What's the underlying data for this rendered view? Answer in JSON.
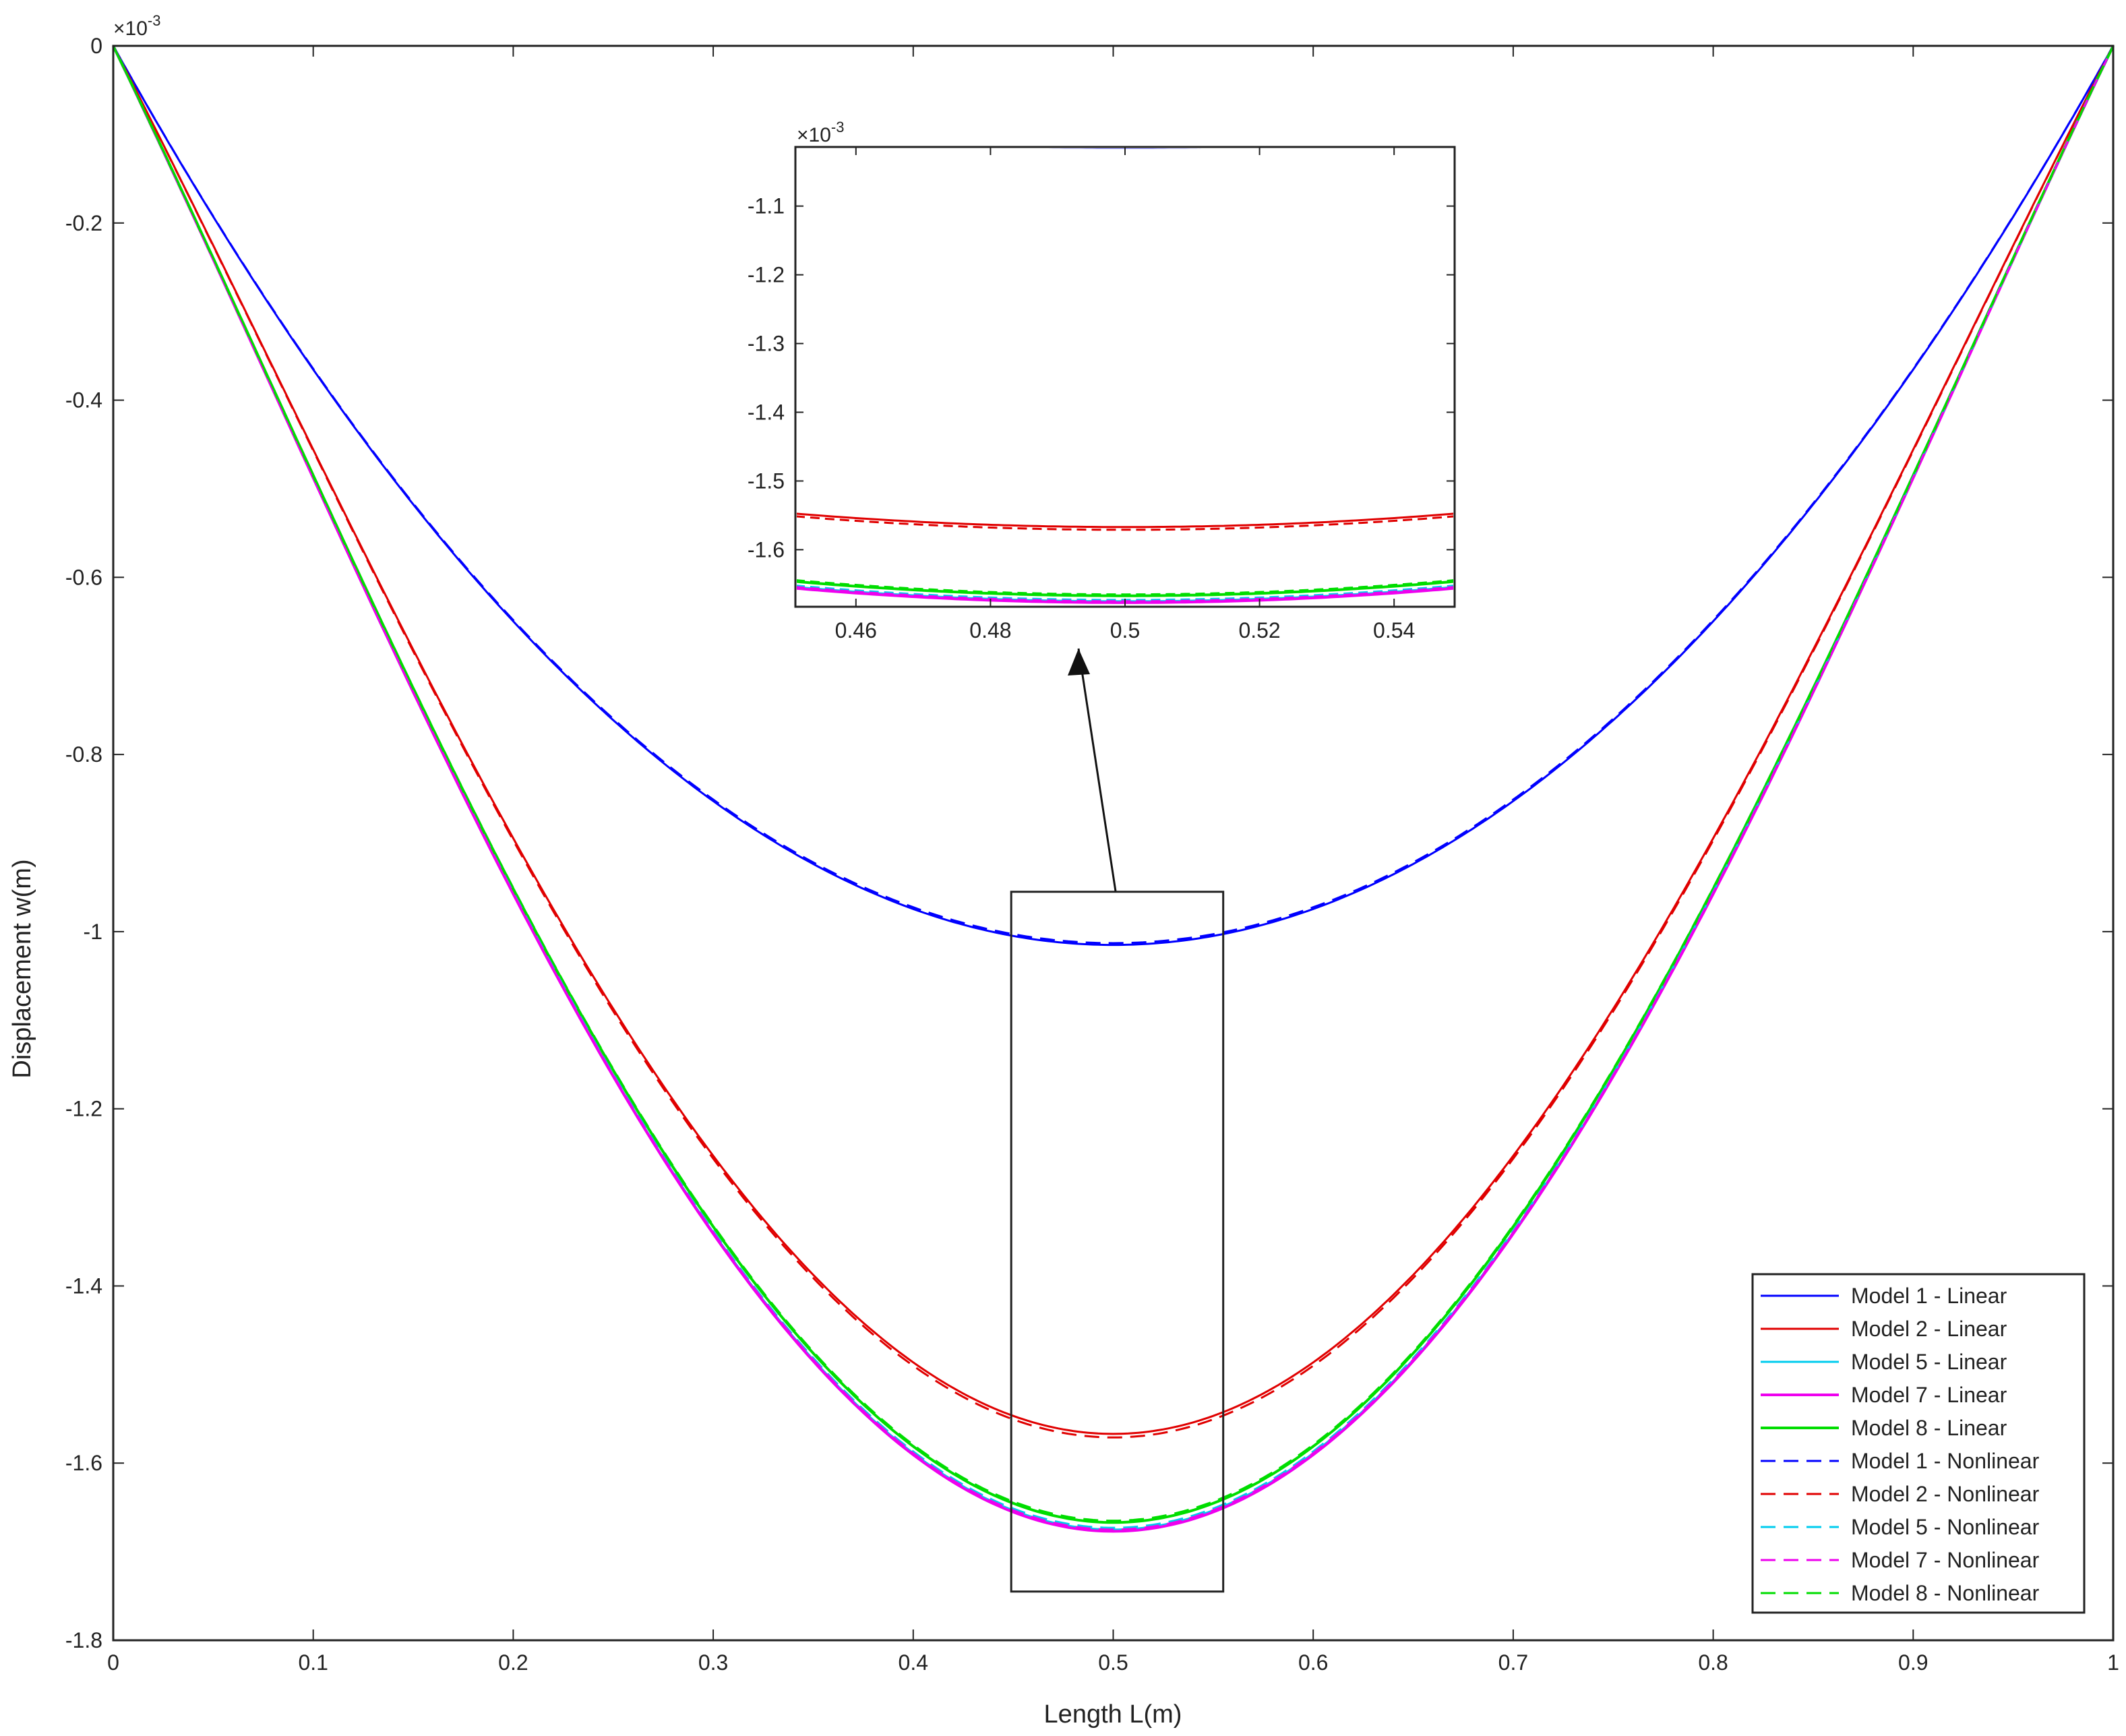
{
  "chart_data": [
    {
      "id": "main",
      "type": "line",
      "title": "",
      "xlabel": "Length L(m)",
      "ylabel": "Displacement w(m)",
      "xlim": [
        0,
        1
      ],
      "ylim": [
        -1.8,
        0
      ],
      "x_ticks": [
        0,
        0.1,
        0.2,
        0.3,
        0.4,
        0.5,
        0.6,
        0.7,
        0.8,
        0.9,
        1
      ],
      "x_tick_labels": [
        "0",
        "0.1",
        "0.2",
        "0.3",
        "0.4",
        "0.5",
        "0.6",
        "0.7",
        "0.8",
        "0.9",
        "1"
      ],
      "y_ticks": [
        0,
        -0.2,
        -0.4,
        -0.6,
        -0.8,
        -1,
        -1.2,
        -1.4,
        -1.6,
        -1.8
      ],
      "y_tick_labels": [
        "0",
        "-0.2",
        "-0.4",
        "-0.6",
        "-0.8",
        "-1",
        "-1.2",
        "-1.4",
        "-1.6",
        "-1.8"
      ],
      "y_exponent_label": "×10",
      "y_exponent_power": "-3",
      "grid": false,
      "legend_position": "bottom-right",
      "curve_shape": "fourth-order clamped-clamped beam deflection; w(x) = w_min · g(x), symmetric about x = 0.5",
      "shape_x": [
        0,
        0.05,
        0.1,
        0.15,
        0.2,
        0.25,
        0.3,
        0.35,
        0.4,
        0.45,
        0.5,
        0.55,
        0.6,
        0.65,
        0.7,
        0.75,
        0.8,
        0.85,
        0.9,
        0.95,
        1
      ],
      "series": [
        {
          "name": "Model 1 - Linear",
          "color": "#0000ff",
          "dash": "solid",
          "width": 3,
          "w_min": -1.015,
          "shape": "parabolic"
        },
        {
          "name": "Model 2 - Linear",
          "color": "#e00000",
          "dash": "solid",
          "width": 3,
          "w_min": -1.567,
          "shape": "beam"
        },
        {
          "name": "Model 5 - Linear",
          "color": "#00ccee",
          "dash": "solid",
          "width": 3,
          "w_min": -1.675,
          "shape": "beam"
        },
        {
          "name": "Model 7 - Linear",
          "color": "#ee00ee",
          "dash": "solid",
          "width": 4,
          "w_min": -1.677,
          "shape": "beam"
        },
        {
          "name": "Model 8 - Linear",
          "color": "#00dd00",
          "dash": "solid",
          "width": 4,
          "w_min": -1.667,
          "shape": "beam"
        },
        {
          "name": "Model 1 - Nonlinear",
          "color": "#0000ff",
          "dash": "dashed",
          "width": 3,
          "w_min": -1.013,
          "shape": "parabolic"
        },
        {
          "name": "Model 2 - Nonlinear",
          "color": "#e00000",
          "dash": "dashed",
          "width": 3,
          "w_min": -1.571,
          "shape": "beam"
        },
        {
          "name": "Model 5 - Nonlinear",
          "color": "#00ccee",
          "dash": "dashed",
          "width": 3,
          "w_min": -1.673,
          "shape": "beam"
        },
        {
          "name": "Model 7 - Nonlinear",
          "color": "#ee00ee",
          "dash": "dashed",
          "width": 3,
          "w_min": -1.675,
          "shape": "beam"
        },
        {
          "name": "Model 8 - Nonlinear",
          "color": "#00dd00",
          "dash": "dashed",
          "width": 3,
          "w_min": -1.665,
          "shape": "beam"
        }
      ],
      "zoom_region": {
        "x": [
          0.449,
          0.555
        ],
        "y": [
          -1.745,
          -0.955
        ]
      }
    },
    {
      "id": "inset",
      "type": "line",
      "title": "",
      "xlabel": "",
      "ylabel": "",
      "xlim": [
        0.451,
        0.549
      ],
      "ylim": [
        -1.683,
        -1.014
      ],
      "x_ticks": [
        0.46,
        0.48,
        0.5,
        0.52,
        0.54
      ],
      "x_tick_labels": [
        "0.46",
        "0.48",
        "0.5",
        "0.52",
        "0.54"
      ],
      "y_ticks": [
        -1.1,
        -1.2,
        -1.3,
        -1.4,
        -1.5,
        -1.6
      ],
      "y_tick_labels": [
        "-1.1",
        "-1.2",
        "-1.3",
        "-1.4",
        "-1.5",
        "-1.6"
      ],
      "y_exponent_label": "×10",
      "y_exponent_power": "-3",
      "grid": false,
      "note": "magnified view of the boxed region near mid-span; same series as main plot"
    }
  ],
  "annotation": {
    "type": "arrow",
    "from": "zoom_region",
    "to": "inset"
  }
}
